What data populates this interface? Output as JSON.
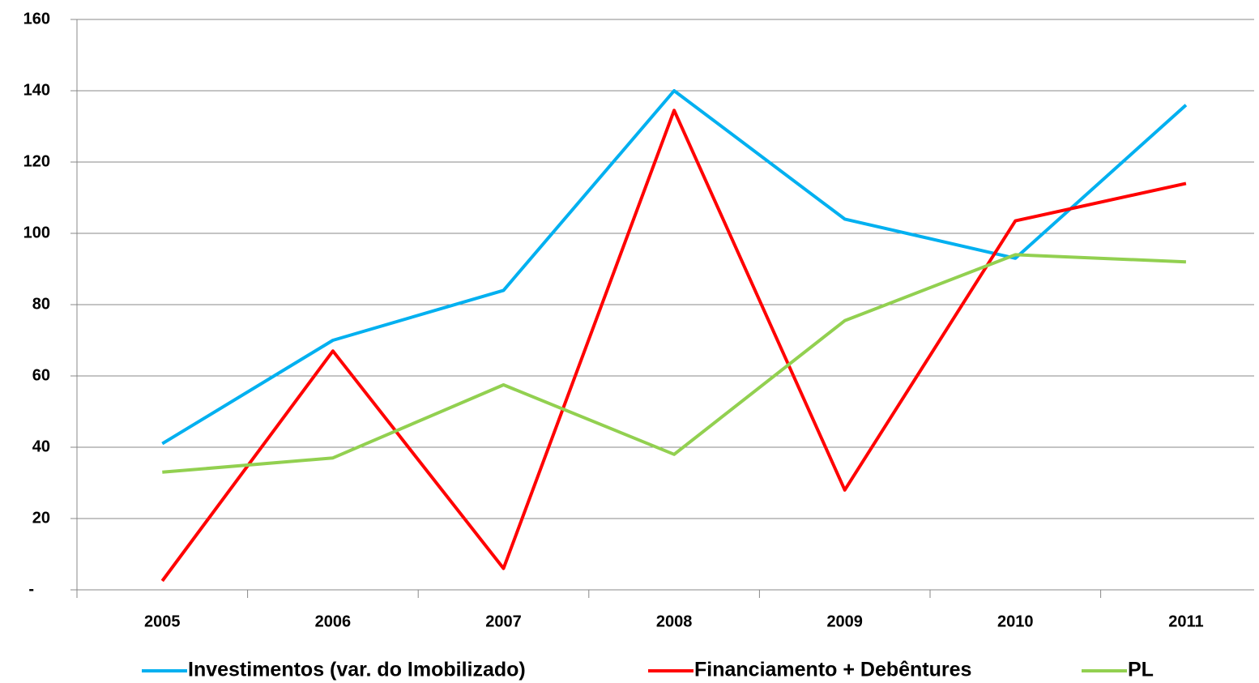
{
  "chart_data": {
    "type": "line",
    "categories": [
      "2005",
      "2006",
      "2007",
      "2008",
      "2009",
      "2010",
      "2011"
    ],
    "series": [
      {
        "name": "Investimentos (var. do Imobilizado)",
        "color": "#00b0f0",
        "values": [
          41,
          70,
          84,
          140,
          104,
          93,
          136
        ]
      },
      {
        "name": "Financiamento + Debêntures",
        "color": "#ff0000",
        "values": [
          2.5,
          67,
          6,
          134.5,
          28,
          103.5,
          114
        ]
      },
      {
        "name": "PL",
        "color": "#92d050",
        "values": [
          33,
          37,
          57.5,
          38,
          75.5,
          94,
          92
        ]
      }
    ],
    "ylim": [
      0,
      160
    ],
    "yticks": [
      {
        "value": 0,
        "label": "-"
      },
      20,
      40,
      60,
      80,
      100,
      120,
      140,
      160
    ],
    "grid": true,
    "legend": "bottom"
  }
}
